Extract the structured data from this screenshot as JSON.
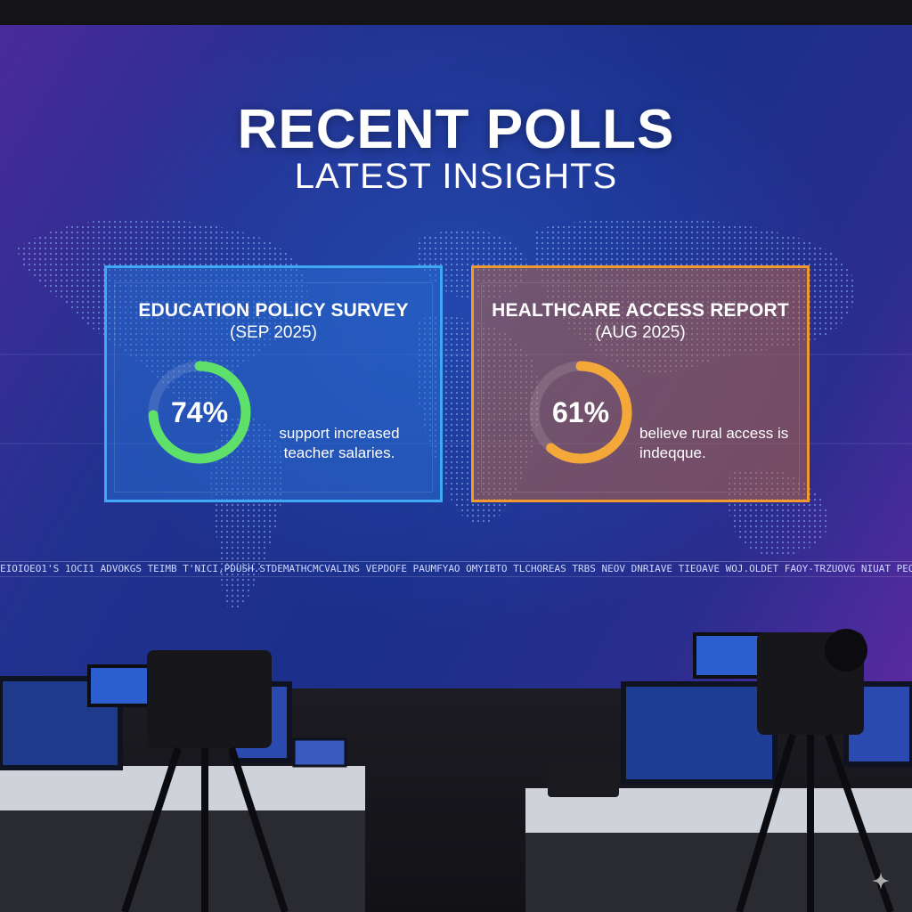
{
  "header": {
    "title": "RECENT POLLS",
    "subtitle": "LATEST INSIGHTS"
  },
  "cards": [
    {
      "title": "EDUCATION POLICY SURVEY",
      "date": "(SEP 2025)",
      "value_label": "74%",
      "percent": 74,
      "description": "support increased teacher salaries.",
      "accent": "#3fa9f5",
      "ring_color": "#5ee06a"
    },
    {
      "title": "HEALTHCARE ACCESS REPORT",
      "date": "(AUG 2025)",
      "value_label": "61%",
      "percent": 61,
      "description": "believe rural access is indeqque.",
      "accent": "#f39a2e",
      "ring_color": "#f5a83a"
    }
  ],
  "ticker": {
    "text": "EIOIOEO1'S 1OCI1 ADVOKGS TEIMB T'NICI,PDUSH.STDEMATHCMCVALINS VEPDOFE PAUMFYAO OMYIBTO TLCHOREAS TRBS NEOV DNRIAVE TIEOAVE WOJ.OLDET FAOY-TRZUOVG NIUAT PEOMOY BEWE : BE WALDE"
  },
  "icons": {
    "sparkle": "sparkle-icon"
  }
}
